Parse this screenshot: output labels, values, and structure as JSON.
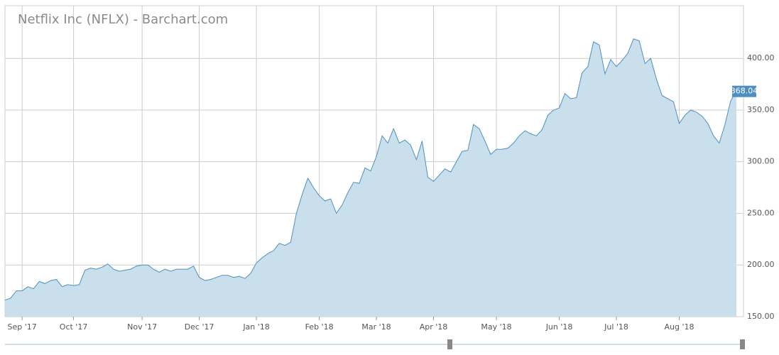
{
  "chart_data": {
    "type": "area",
    "title": "Netflix Inc (NFLX) - Barchart.com",
    "categories": [
      null,
      null,
      null,
      "Sep '17",
      null,
      null,
      null,
      null,
      null,
      null,
      null,
      null,
      "Oct '17",
      null,
      null,
      null,
      null,
      null,
      null,
      null,
      null,
      null,
      null,
      null,
      "Nov '17",
      null,
      null,
      null,
      null,
      null,
      null,
      null,
      null,
      null,
      "Dec '17",
      null,
      null,
      null,
      null,
      null,
      null,
      null,
      null,
      null,
      "Jan '18",
      null,
      null,
      null,
      null,
      null,
      null,
      null,
      null,
      null,
      null,
      "Feb '18",
      null,
      null,
      null,
      null,
      null,
      null,
      null,
      null,
      null,
      "Mar '18",
      null,
      null,
      null,
      null,
      null,
      null,
      null,
      null,
      null,
      "Apr '18",
      null,
      null,
      null,
      null,
      null,
      null,
      null,
      null,
      null,
      null,
      "May '18",
      null,
      null,
      null,
      null,
      null,
      null,
      null,
      null,
      null,
      null,
      "Jun '18",
      null,
      null,
      null,
      null,
      null,
      null,
      null,
      null,
      null,
      "Jul '18",
      null,
      null,
      null,
      null,
      null,
      null,
      null,
      null,
      null,
      null,
      "Aug '18",
      null,
      null,
      null,
      null,
      null,
      null,
      null,
      null,
      null,
      null
    ],
    "values": [
      166,
      168,
      175,
      175,
      179,
      177,
      184,
      182,
      185,
      186,
      179,
      181,
      180,
      181,
      195,
      197,
      196,
      198,
      201,
      196,
      194,
      195,
      196,
      199,
      200,
      200,
      196,
      193,
      196,
      194,
      196,
      196,
      196,
      199,
      188,
      185,
      186,
      188,
      190,
      190,
      188,
      189,
      187,
      192,
      202,
      207,
      211,
      214,
      221,
      219,
      222,
      250,
      268,
      284,
      275,
      267,
      262,
      264,
      250,
      258,
      270,
      280,
      279,
      294,
      291,
      305,
      325,
      318,
      332,
      318,
      321,
      316,
      302,
      320,
      285,
      281,
      287,
      293,
      290,
      300,
      310,
      311,
      336,
      332,
      320,
      307,
      312,
      312,
      313,
      318,
      325,
      330,
      327,
      325,
      331,
      345,
      350,
      352,
      366,
      361,
      362,
      386,
      392,
      416,
      413,
      385,
      399,
      392,
      398,
      405,
      419,
      417,
      395,
      400,
      380,
      364,
      361,
      358,
      337,
      345,
      350,
      348,
      344,
      337,
      325,
      318,
      336,
      359,
      368.04
    ],
    "last_price_label": "368.04",
    "color": "#4f8fbf",
    "fill": "#c9dfec",
    "ylim": [
      150,
      451
    ],
    "yticks": [
      {
        "value": 150,
        "label": "150.00"
      },
      {
        "value": 200,
        "label": "200.00"
      },
      {
        "value": 250,
        "label": "250.00"
      },
      {
        "value": 300,
        "label": "300.00"
      },
      {
        "value": 350,
        "label": "350.00"
      },
      {
        "value": 400,
        "label": "400.00"
      }
    ],
    "grid": true
  }
}
